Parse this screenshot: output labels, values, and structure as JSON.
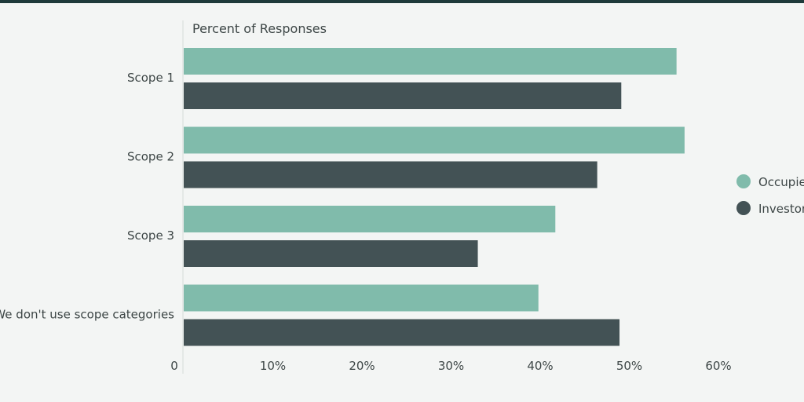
{
  "chart_data": {
    "type": "bar",
    "orientation": "horizontal",
    "title": "Percent of Responses",
    "categories": [
      "Scope 1",
      "Scope 2",
      "Scope 3",
      "We don't use scope categories"
    ],
    "series": [
      {
        "name": "Occupier",
        "color": "#80bbab",
        "values": [
          55.3,
          56.2,
          41.7,
          39.8
        ]
      },
      {
        "name": "Investor",
        "color": "#435255",
        "values": [
          49.1,
          46.4,
          33.0,
          48.9
        ]
      }
    ],
    "xlim": [
      0,
      60
    ],
    "ticks": [
      "0",
      "10%",
      "20%",
      "30%",
      "40%",
      "50%",
      "60%"
    ],
    "tick_values": [
      0,
      10,
      20,
      30,
      40,
      50,
      60
    ],
    "legend": "right",
    "grid": false
  }
}
